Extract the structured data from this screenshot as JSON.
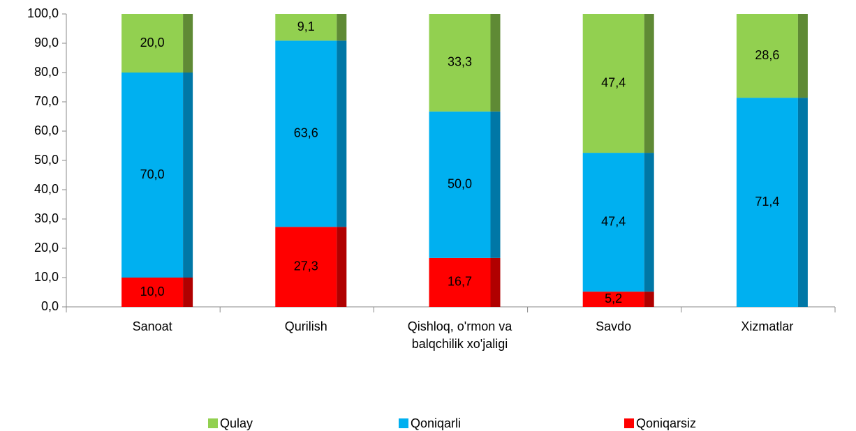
{
  "chart_data": {
    "type": "stacked_bar",
    "categories": [
      "Sanoat",
      "Qurilish",
      "Qishloq, o'rmon va balqchilik xo'jaligi",
      "Savdo",
      "Xizmatlar"
    ],
    "series": [
      {
        "name": "Qulay",
        "color": "#92d050",
        "side_color": "#5f8a35",
        "values": [
          20.0,
          9.1,
          33.3,
          47.4,
          28.6
        ],
        "value_labels": [
          "20,0",
          "9,1",
          "33,3",
          "47,4",
          "28,6"
        ]
      },
      {
        "name": "Qoniqarli",
        "color": "#00b0f0",
        "side_color": "#0077a6",
        "values": [
          70.0,
          63.6,
          50.0,
          47.4,
          71.4
        ],
        "value_labels": [
          "70,0",
          "63,6",
          "50,0",
          "47,4",
          "71,4"
        ]
      },
      {
        "name": "Qoniqarsiz",
        "color": "#ff0000",
        "side_color": "#b00000",
        "values": [
          10.0,
          27.3,
          16.7,
          5.2,
          null
        ],
        "value_labels": [
          "10,0",
          "27,3",
          "16,7",
          "5,2",
          null
        ]
      }
    ],
    "ylim": [
      0,
      100
    ],
    "yticks": [
      {
        "value": 0,
        "label": "0,0"
      },
      {
        "value": 10,
        "label": "10,0"
      },
      {
        "value": 20,
        "label": "20,0"
      },
      {
        "value": 30,
        "label": "30,0"
      },
      {
        "value": 40,
        "label": "40,0"
      },
      {
        "value": 50,
        "label": "50,0"
      },
      {
        "value": 60,
        "label": "60,0"
      },
      {
        "value": 70,
        "label": "70,0"
      },
      {
        "value": 80,
        "label": "80,0"
      },
      {
        "value": 90,
        "label": "90,0"
      },
      {
        "value": 100,
        "label": "100,0"
      }
    ],
    "legend": "bottom"
  }
}
